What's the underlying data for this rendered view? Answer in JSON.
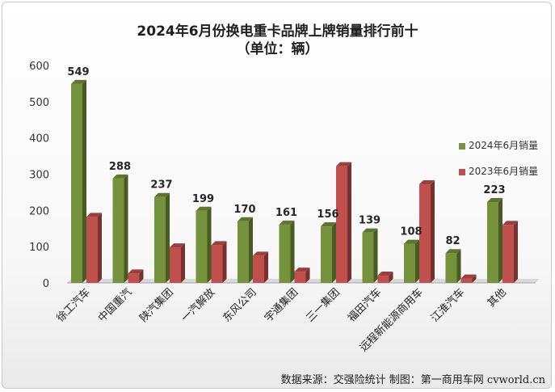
{
  "title_line1": "2024年6月份换电重卡品牌上牌销量排行前十",
  "title_line2": "（单位：辆）",
  "footer": "数据来源：交强险统计  制图：第一商用车网 cvworld.cn",
  "chart_data": {
    "type": "bar",
    "categories": [
      "徐工汽车",
      "中国重汽",
      "陕汽集团",
      "一汽解放",
      "东风公司",
      "宇通集团",
      "三一集团",
      "福田汽车",
      "远程新能源商用车",
      "江淮汽车",
      "其他"
    ],
    "series": [
      {
        "name": "2024年6月销量",
        "color": "#76923c",
        "values": [
          549,
          288,
          237,
          199,
          170,
          161,
          156,
          139,
          108,
          82,
          223
        ],
        "labels": [
          549,
          288,
          237,
          199,
          170,
          161,
          156,
          139,
          108,
          82,
          223
        ]
      },
      {
        "name": "2023年6月销量",
        "color": "#c0504d",
        "values": [
          182,
          26,
          98,
          104,
          75,
          31,
          322,
          20,
          272,
          12,
          160
        ]
      }
    ],
    "yticks": [
      0,
      100,
      200,
      300,
      400,
      500,
      600
    ],
    "ylim": [
      0,
      600
    ],
    "grid": false,
    "legend": "right"
  }
}
